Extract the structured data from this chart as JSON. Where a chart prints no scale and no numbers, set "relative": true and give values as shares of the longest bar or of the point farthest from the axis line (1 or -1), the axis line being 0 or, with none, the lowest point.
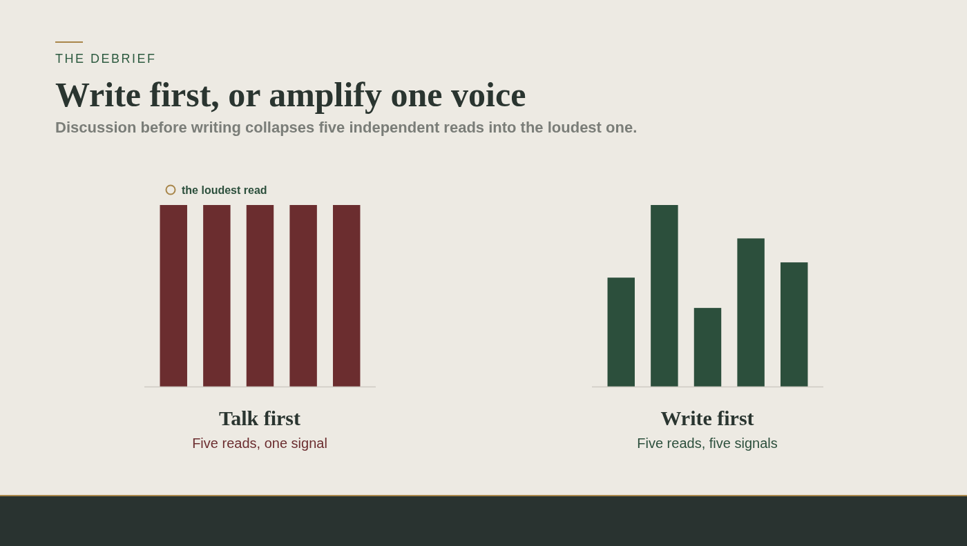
{
  "chart_data": [
    {
      "type": "other",
      "title": "Write first, or amplify one voice",
      "subtitle": "Discussion before writing collapses five independent reads into the loudest one.",
      "annotations": [
        "THE DEBRIEF"
      ]
    },
    {
      "type": "bar",
      "title": "Talk first",
      "subtitle": "Five reads, one signal",
      "relative": true,
      "categories": [
        null,
        null,
        null,
        null,
        null
      ],
      "values": [
        1,
        1,
        1,
        1,
        1
      ],
      "color": "#6b2d2f",
      "annotations": [
        "the loudest read"
      ]
    },
    {
      "type": "bar",
      "title": "Write first",
      "subtitle": "Five reads, five signals",
      "relative": true,
      "categories": [
        null,
        null,
        null,
        null,
        null
      ],
      "values": [
        0.6,
        1,
        0.433,
        0.816,
        0.684
      ],
      "color": "#2c4f3c"
    }
  ]
}
